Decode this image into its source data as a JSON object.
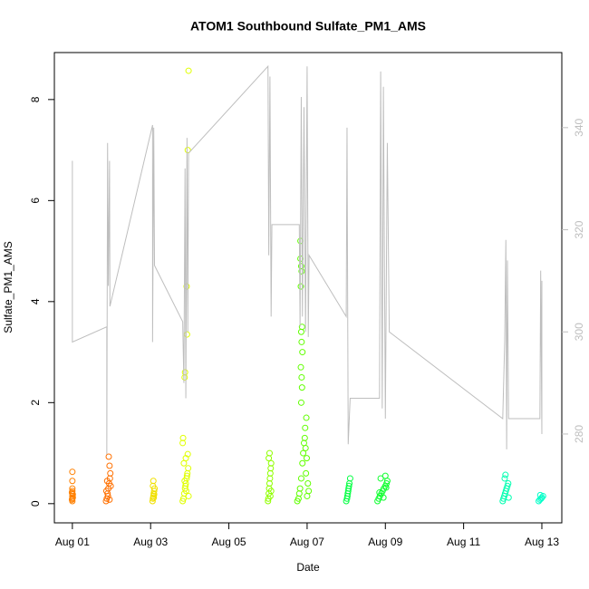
{
  "chart_data": {
    "type": "scatter",
    "title": "ATOM1 Southbound Sulfate_PM1_AMS",
    "xlabel": "Date",
    "ylabel": "Sulfate_PM1_AMS",
    "xlim": [
      0.54,
      13.51
    ],
    "ylim": [
      -0.38,
      8.93
    ],
    "y2lim": [
      262.6,
      354.7
    ],
    "xticks": [
      {
        "value": 1,
        "label": "Aug 01"
      },
      {
        "value": 3,
        "label": "Aug 03"
      },
      {
        "value": 5,
        "label": "Aug 05"
      },
      {
        "value": 7,
        "label": "Aug 07"
      },
      {
        "value": 9,
        "label": "Aug 09"
      },
      {
        "value": 11,
        "label": "Aug 11"
      },
      {
        "value": 13,
        "label": "Aug 13"
      }
    ],
    "yticks": [
      0,
      2,
      4,
      6,
      8
    ],
    "y2ticks": [
      280,
      300,
      320,
      340
    ],
    "y2color": "#bebebe",
    "series": [
      {
        "color": "#ff8000",
        "x": [
          1,
          1,
          1,
          1,
          1,
          1,
          1.01,
          0.99,
          1,
          1,
          1.01,
          0.99
        ],
        "values": [
          0.05,
          0.1,
          0.15,
          0.2,
          0.25,
          0.3,
          0.12,
          0.08,
          0.45,
          0.63,
          0.18,
          0.22
        ]
      },
      {
        "color": "#ff7000",
        "x": [
          1.86,
          1.88,
          1.9,
          1.92,
          1.94,
          1.96,
          1.98,
          1.87,
          1.93,
          1.95,
          1.97,
          1.91,
          1.89,
          1.95
        ],
        "values": [
          0.05,
          0.1,
          0.2,
          0.3,
          0.4,
          0.5,
          0.35,
          0.25,
          0.93,
          0.75,
          0.6,
          0.15,
          0.45,
          0.08
        ]
      },
      {
        "color": "#f0e000",
        "x": [
          3.05,
          3.06,
          3.07,
          3.08,
          3.09,
          3.1,
          3.06,
          3.07,
          3.08,
          3.09
        ],
        "values": [
          0.05,
          0.1,
          0.15,
          0.2,
          0.25,
          0.3,
          0.35,
          0.45,
          0.12,
          0.18
        ]
      },
      {
        "color": "#e0ff00",
        "x": [
          3.82,
          3.84,
          3.86,
          3.88,
          3.9,
          3.92,
          3.94,
          3.96,
          3.85,
          3.9,
          3.95,
          3.82,
          3.83,
          3.87,
          3.88,
          3.93,
          3.92,
          3.95,
          3.97,
          3.97,
          3.91,
          3.89,
          3.87,
          3.93
        ],
        "values": [
          0.05,
          0.1,
          0.2,
          0.3,
          0.4,
          0.5,
          0.6,
          0.7,
          0.8,
          0.9,
          0.98,
          1.2,
          1.3,
          2.5,
          2.6,
          3.35,
          4.3,
          7.0,
          8.57,
          0.15,
          0.25,
          0.35,
          0.45,
          0.55
        ]
      },
      {
        "color": "#90ff00",
        "x": [
          6.0,
          6.01,
          6.02,
          6.03,
          6.04,
          6.05,
          6.06,
          6.07,
          6.08,
          6.02,
          6.04,
          6.06,
          6.08
        ],
        "values": [
          0.05,
          0.1,
          0.2,
          0.3,
          0.4,
          0.5,
          0.6,
          0.7,
          0.8,
          0.9,
          1.0,
          0.15,
          0.25
        ]
      },
      {
        "color": "#60ff00",
        "x": [
          6.75,
          6.78,
          6.8,
          6.82,
          6.85,
          6.88,
          6.9,
          6.92,
          6.95,
          6.98,
          6.85,
          6.87,
          6.86,
          6.84,
          6.88,
          6.86,
          6.85,
          6.87,
          6.84,
          6.86,
          6.85,
          6.83,
          6.83,
          7.0,
          7.02,
          6.97,
          6.99,
          6.96,
          6.94,
          7.04
        ],
        "values": [
          0.05,
          0.1,
          0.2,
          0.3,
          0.5,
          0.8,
          1.0,
          1.2,
          1.5,
          1.7,
          2.0,
          2.3,
          2.5,
          2.7,
          3.0,
          3.2,
          3.4,
          3.5,
          4.3,
          4.6,
          4.7,
          4.85,
          5.2,
          0.15,
          0.4,
          0.6,
          0.9,
          1.1,
          1.3,
          0.25
        ]
      },
      {
        "color": "#00ff40",
        "x": [
          8.0,
          8.02,
          8.04,
          8.06,
          8.08,
          8.1,
          8.03,
          8.05,
          8.07
        ],
        "values": [
          0.05,
          0.1,
          0.2,
          0.3,
          0.4,
          0.5,
          0.15,
          0.25,
          0.35
        ]
      },
      {
        "color": "#10ff30",
        "x": [
          8.8,
          8.83,
          8.86,
          8.9,
          8.93,
          8.96,
          9.0,
          9.03,
          9.05,
          8.88,
          9.0,
          8.95,
          8.85,
          9.02
        ],
        "values": [
          0.05,
          0.1,
          0.15,
          0.2,
          0.25,
          0.3,
          0.35,
          0.4,
          0.45,
          0.5,
          0.55,
          0.12,
          0.22,
          0.32
        ]
      },
      {
        "color": "#00ffb0",
        "x": [
          12.0,
          12.02,
          12.04,
          12.06,
          12.08,
          12.1,
          12.12,
          12.14,
          12.05,
          12.07,
          12.15
        ],
        "values": [
          0.05,
          0.1,
          0.15,
          0.2,
          0.25,
          0.3,
          0.35,
          0.4,
          0.5,
          0.57,
          0.12
        ]
      },
      {
        "color": "#00ffc8",
        "x": [
          12.92,
          12.95,
          12.98,
          13.0,
          13.03,
          12.96
        ],
        "values": [
          0.05,
          0.08,
          0.1,
          0.12,
          0.15,
          0.17
        ]
      },
      {
        "type": "line",
        "axis": "y2",
        "color": "#bebebe",
        "x": [
          1.0,
          1.0,
          1.0,
          1.88,
          1.88,
          1.9,
          1.92,
          1.95,
          1.96,
          3.05,
          3.05,
          3.08,
          3.1,
          3.82,
          3.85,
          3.88,
          3.9,
          3.93,
          3.95,
          3.97,
          6.0,
          6.02,
          6.05,
          6.08,
          6.1,
          6.8,
          6.82,
          6.85,
          6.88,
          6.92,
          6.96,
          7.0,
          7.03,
          7.05,
          8.0,
          8.02,
          8.05,
          8.1,
          8.85,
          8.88,
          8.92,
          8.95,
          9.0,
          9.05,
          9.1,
          12.0,
          12.05,
          12.08,
          12.1,
          12.12,
          12.15,
          12.95,
          12.97,
          13.0,
          13.0
        ],
        "values": [
          320,
          333.5,
          298,
          301,
          276,
          337,
          309,
          333.5,
          305,
          340.5,
          298,
          340,
          313,
          302,
          290,
          332,
          287,
          338,
          300,
          335,
          352,
          315,
          350,
          303,
          321,
          321,
          301,
          346,
          303,
          344,
          300,
          352,
          299,
          315,
          303,
          340,
          278,
          287,
          287,
          351,
          285,
          348,
          283,
          337,
          300,
          283,
          298,
          318,
          277,
          314,
          283,
          283,
          312,
          280,
          310
        ]
      }
    ]
  }
}
